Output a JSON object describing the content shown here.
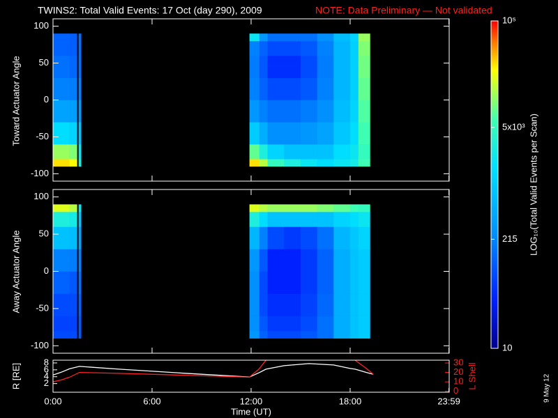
{
  "chart_data": [
    {
      "type": "heatmap",
      "title": "TWINS2: Total Valid Events: 17 Oct (day 290), 2009",
      "note": "NOTE: Data Preliminary — Not validated",
      "date": "9 May 12",
      "ylabel": "Toward Actuator Angle",
      "xlim": [
        0,
        24
      ],
      "ylim": [
        -110,
        110
      ],
      "yticks": [
        -100,
        -50,
        0,
        50,
        100
      ],
      "colorbar": {
        "label": "LOG₁₀(Total Valid  Events per Scan)",
        "lim": [
          10,
          100000
        ],
        "log": true,
        "ticks": [
          10,
          215,
          {
            "value": 5000,
            "label": "5x10³"
          },
          {
            "value": 100000,
            "label": "10⁵"
          }
        ]
      },
      "x_bins": [
        0,
        0.5,
        1,
        1.45,
        1.55,
        1.7,
        11.9,
        12.5,
        13,
        14,
        15,
        16,
        17,
        18,
        18.5,
        19.2
      ],
      "y_bins": [
        -90,
        -80,
        -60,
        -30,
        0,
        30,
        60,
        80,
        90
      ],
      "values": [
        [
          30000,
          30000,
          25000,
          null,
          3000,
          null,
          30000,
          15000,
          5000,
          3000,
          2000,
          1500,
          2000,
          2500,
          6000
        ],
        [
          12000,
          12000,
          10000,
          null,
          2000,
          null,
          8000,
          3000,
          1200,
          800,
          800,
          800,
          1500,
          2000,
          5000
        ],
        [
          1500,
          1500,
          1200,
          null,
          800,
          null,
          1000,
          500,
          250,
          250,
          300,
          400,
          900,
          1500,
          6000
        ],
        [
          400,
          400,
          350,
          null,
          300,
          null,
          300,
          200,
          150,
          150,
          180,
          250,
          700,
          1200,
          7000
        ],
        [
          200,
          200,
          180,
          null,
          200,
          null,
          200,
          120,
          80,
          80,
          100,
          200,
          600,
          1100,
          8000
        ],
        [
          150,
          150,
          130,
          null,
          150,
          null,
          180,
          100,
          50,
          50,
          80,
          180,
          600,
          1100,
          9000
        ],
        [
          120,
          120,
          110,
          null,
          150,
          null,
          200,
          120,
          80,
          80,
          100,
          200,
          600,
          1100,
          10000
        ],
        [
          120,
          120,
          110,
          null,
          150,
          null,
          2000,
          300,
          150,
          150,
          150,
          250,
          700,
          1200,
          12000
        ]
      ]
    },
    {
      "type": "heatmap",
      "ylabel": "Away Actuator Angle",
      "xlim": [
        0,
        24
      ],
      "ylim": [
        -110,
        110
      ],
      "yticks": [
        -100,
        -50,
        0,
        50,
        100
      ],
      "x_bins": [
        0,
        0.5,
        1,
        1.45,
        1.55,
        1.7,
        11.9,
        12.5,
        13,
        14,
        15,
        16,
        17,
        18,
        18.5,
        19.2
      ],
      "y_bins": [
        -90,
        -80,
        -60,
        -30,
        0,
        30,
        60,
        80,
        90
      ],
      "values": [
        [
          80,
          80,
          80,
          null,
          100,
          null,
          300,
          120,
          80,
          80,
          100,
          150,
          500,
          800,
          1000
        ],
        [
          70,
          70,
          70,
          null,
          100,
          null,
          250,
          100,
          60,
          60,
          80,
          150,
          500,
          800,
          1000
        ],
        [
          80,
          80,
          80,
          null,
          120,
          null,
          250,
          80,
          50,
          50,
          70,
          130,
          500,
          800,
          1000
        ],
        [
          120,
          120,
          100,
          null,
          150,
          null,
          250,
          80,
          40,
          40,
          60,
          120,
          500,
          800,
          1000
        ],
        [
          200,
          200,
          180,
          null,
          200,
          null,
          300,
          100,
          40,
          40,
          60,
          120,
          500,
          800,
          1000
        ],
        [
          800,
          800,
          700,
          null,
          400,
          null,
          600,
          200,
          80,
          60,
          80,
          150,
          600,
          900,
          1200
        ],
        [
          3000,
          3000,
          2500,
          null,
          800,
          null,
          3000,
          1500,
          800,
          800,
          800,
          800,
          1200,
          1500,
          2000
        ],
        [
          20000,
          20000,
          15000,
          null,
          2000,
          null,
          20000,
          15000,
          12000,
          12000,
          12000,
          10000,
          8000,
          6000,
          5000
        ]
      ]
    },
    {
      "type": "line",
      "xlabel": "Time (UT)",
      "ylabel": "R [RE]",
      "y2label": "L Shell",
      "xlim": [
        0,
        24
      ],
      "ylim": [
        -0.5,
        8.8
      ],
      "y2lim": [
        -1,
        33
      ],
      "xticks": [
        {
          "value": 0,
          "label": "0:00"
        },
        {
          "value": 6,
          "label": "6:00"
        },
        {
          "value": 12,
          "label": "12:00"
        },
        {
          "value": 18,
          "label": "18:00"
        },
        {
          "value": 23.983,
          "label": "23:59"
        }
      ],
      "yticks": [
        2,
        4,
        6,
        8
      ],
      "y2ticks": [
        0,
        10,
        20,
        30
      ],
      "x": [
        0,
        0.5,
        1,
        1.6,
        4,
        8,
        11.9,
        12.5,
        12.9,
        14,
        15.5,
        17,
        18,
        18.3,
        19,
        19.4
      ],
      "series": [
        {
          "color": "#ffffff",
          "values": [
            4.5,
            5.3,
            6.3,
            7.0,
            6.2,
            5.0,
            3.9,
            5.2,
            6.2,
            7.2,
            7.8,
            7.4,
            6.4,
            6.2,
            5.2,
            4.7
          ]
        },
        {
          "color": "#ff2020",
          "axis": "y2",
          "values": [
            10,
            12,
            15,
            20,
            19,
            17,
            15,
            24,
            33,
            null,
            null,
            null,
            null,
            33,
            24,
            18
          ]
        }
      ]
    }
  ]
}
